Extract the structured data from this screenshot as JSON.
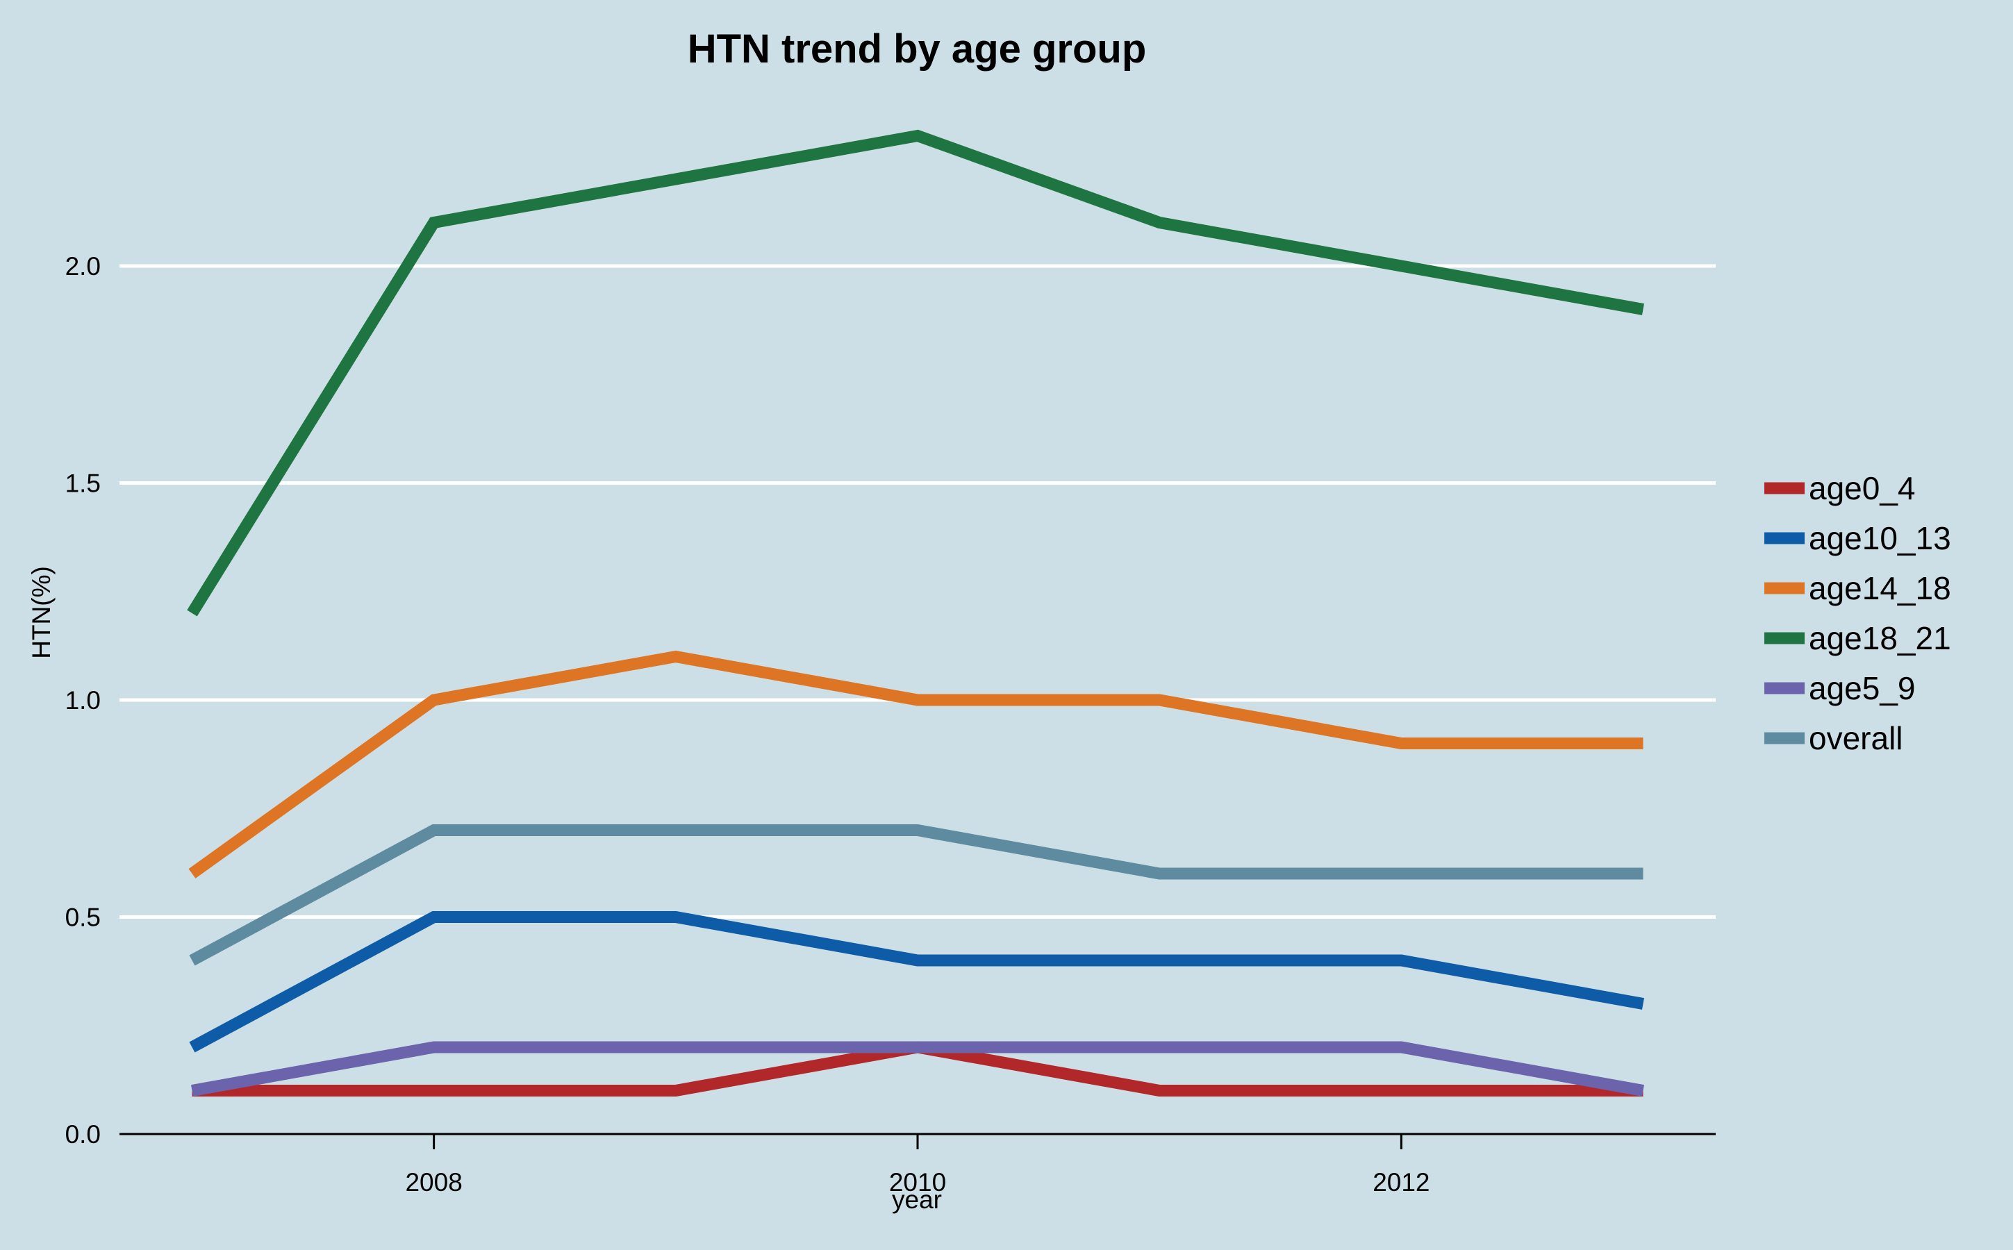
{
  "chart_data": {
    "type": "line",
    "title": "HTN trend by age group",
    "xlabel": "year",
    "ylabel": "HTN(%)",
    "x": [
      2007,
      2008,
      2009,
      2010,
      2011,
      2012,
      2013
    ],
    "xlim": [
      2006.7,
      2013.3
    ],
    "ylim": [
      0,
      2.3
    ],
    "xticks": [
      2008,
      2010,
      2012
    ],
    "xtick_labels": [
      "2008",
      "2010",
      "2012"
    ],
    "yticks": [
      0,
      0.5,
      1.0,
      1.5,
      2.0
    ],
    "ytick_labels": [
      "0.0",
      "0.5",
      "1.0",
      "1.5",
      "2.0"
    ],
    "grid": "horizontal",
    "legend_position": "right",
    "series": [
      {
        "name": "age0_4",
        "color": "#b2282a",
        "values": [
          0.1,
          0.1,
          0.1,
          0.2,
          0.1,
          0.1,
          0.1
        ]
      },
      {
        "name": "age10_13",
        "color": "#0e5ca8",
        "values": [
          0.2,
          0.5,
          0.5,
          0.4,
          0.4,
          0.4,
          0.3
        ]
      },
      {
        "name": "age14_18",
        "color": "#dd7525",
        "values": [
          0.6,
          1.0,
          1.1,
          1.0,
          1.0,
          0.9,
          0.9
        ]
      },
      {
        "name": "age18_21",
        "color": "#1f7541",
        "values": [
          1.2,
          2.1,
          2.2,
          2.3,
          2.1,
          2.0,
          1.9
        ]
      },
      {
        "name": "age5_9",
        "color": "#6b63ab",
        "values": [
          0.1,
          0.2,
          0.2,
          0.2,
          0.2,
          0.2,
          0.1
        ]
      },
      {
        "name": "overall",
        "color": "#5e8ba0",
        "values": [
          0.4,
          0.7,
          0.7,
          0.7,
          0.6,
          0.6,
          0.6
        ]
      }
    ]
  }
}
